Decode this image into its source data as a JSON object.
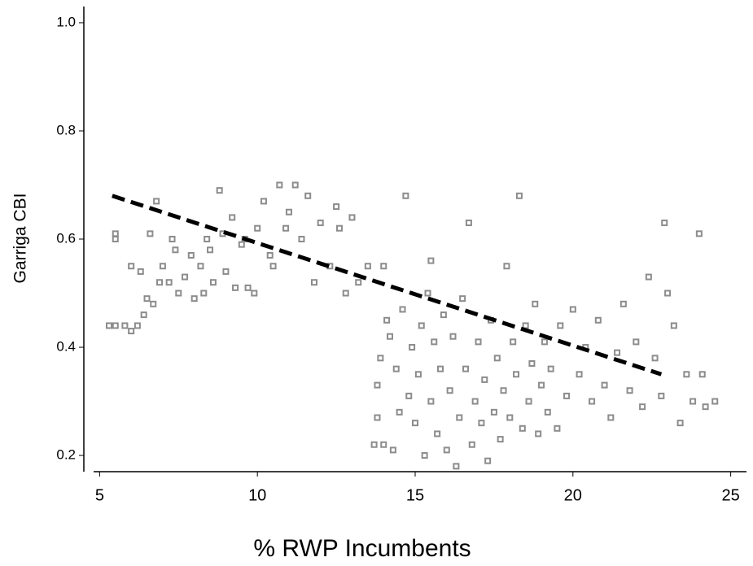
{
  "chart_data": {
    "type": "scatter",
    "x_label": "% RWP Incumbents",
    "y_label": "Garriga CBI",
    "xlim": [
      4.5,
      25.5
    ],
    "ylim": [
      0.17,
      1.03
    ],
    "xticks": [
      5,
      10,
      15,
      20,
      25
    ],
    "yticks": [
      0.2,
      {
        "value": 0.4,
        "label": "0.4"
      },
      0.6,
      0.8,
      {
        "value": 1,
        "label": "1.0"
      }
    ],
    "color": "#8c8c8c",
    "x": [
      5.3,
      5.5,
      5.8,
      6.0,
      6.2,
      5.5,
      5.5,
      6.0,
      6.3,
      6.5,
      6.7,
      6.4,
      6.6,
      6.8,
      7.0,
      7.2,
      7.3,
      7.5,
      7.7,
      7.9,
      8.0,
      8.2,
      8.4,
      8.5,
      8.6,
      8.8,
      8.9,
      9.0,
      9.2,
      9.3,
      9.5,
      9.7,
      9.9,
      10.0,
      10.2,
      10.4,
      10.7,
      10.9,
      11.0,
      11.2,
      11.4,
      11.6,
      11.8,
      12.0,
      12.3,
      12.5,
      12.6,
      12.8,
      13.0,
      13.2,
      13.5,
      8.3,
      7.4,
      6.9,
      9.6,
      10.5,
      13.7,
      14.0,
      14.3,
      13.8,
      13.9,
      14.1,
      14.2,
      14.4,
      14.5,
      14.6,
      14.7,
      14.8,
      14.9,
      15.0,
      15.1,
      15.2,
      15.3,
      15.4,
      15.5,
      15.6,
      15.7,
      15.8,
      15.9,
      16.0,
      16.1,
      16.2,
      16.3,
      16.4,
      16.5,
      16.6,
      16.7,
      16.8,
      16.9,
      17.0,
      17.1,
      17.2,
      17.3,
      17.4,
      17.5,
      17.6,
      17.7,
      17.8,
      17.9,
      18.0,
      18.1,
      18.2,
      18.3,
      18.4,
      18.5,
      18.6,
      18.7,
      18.8,
      18.9,
      19.0,
      19.1,
      19.2,
      19.3,
      19.5,
      19.6,
      19.8,
      20.0,
      20.2,
      20.4,
      20.6,
      20.8,
      21.0,
      21.2,
      21.4,
      21.6,
      21.8,
      22.0,
      22.2,
      22.4,
      22.6,
      22.8,
      23.0,
      22.9,
      23.2,
      23.4,
      23.6,
      23.8,
      24.0,
      24.1,
      24.2,
      24.5,
      14.0,
      15.5,
      13.8
    ],
    "y": [
      0.44,
      0.44,
      0.44,
      0.43,
      0.44,
      0.61,
      0.6,
      0.55,
      0.54,
      0.49,
      0.48,
      0.46,
      0.61,
      0.67,
      0.55,
      0.52,
      0.6,
      0.5,
      0.53,
      0.57,
      0.49,
      0.55,
      0.6,
      0.58,
      0.52,
      0.69,
      0.61,
      0.54,
      0.64,
      0.51,
      0.59,
      0.51,
      0.5,
      0.62,
      0.67,
      0.57,
      0.7,
      0.62,
      0.65,
      0.7,
      0.6,
      0.68,
      0.52,
      0.63,
      0.55,
      0.66,
      0.62,
      0.5,
      0.64,
      0.52,
      0.55,
      0.5,
      0.58,
      0.52,
      0.6,
      0.55,
      0.22,
      0.22,
      0.21,
      0.33,
      0.38,
      0.45,
      0.42,
      0.36,
      0.28,
      0.47,
      0.68,
      0.31,
      0.4,
      0.26,
      0.35,
      0.44,
      0.2,
      0.5,
      0.3,
      0.41,
      0.24,
      0.36,
      0.46,
      0.21,
      0.32,
      0.42,
      0.18,
      0.27,
      0.49,
      0.36,
      0.63,
      0.22,
      0.3,
      0.41,
      0.26,
      0.34,
      0.19,
      0.45,
      0.28,
      0.38,
      0.23,
      0.32,
      0.55,
      0.27,
      0.41,
      0.35,
      0.68,
      0.25,
      0.44,
      0.3,
      0.37,
      0.48,
      0.24,
      0.33,
      0.41,
      0.28,
      0.36,
      0.25,
      0.44,
      0.31,
      0.47,
      0.35,
      0.4,
      0.3,
      0.45,
      0.33,
      0.27,
      0.39,
      0.48,
      0.32,
      0.41,
      0.29,
      0.53,
      0.38,
      0.31,
      0.5,
      0.63,
      0.44,
      0.26,
      0.35,
      0.3,
      0.61,
      0.35,
      0.29,
      0.3,
      0.55,
      0.56,
      0.27
    ],
    "trend": {
      "x": [
        5.4,
        22.8
      ],
      "y": [
        0.68,
        0.35
      ],
      "color": "#000000"
    }
  }
}
